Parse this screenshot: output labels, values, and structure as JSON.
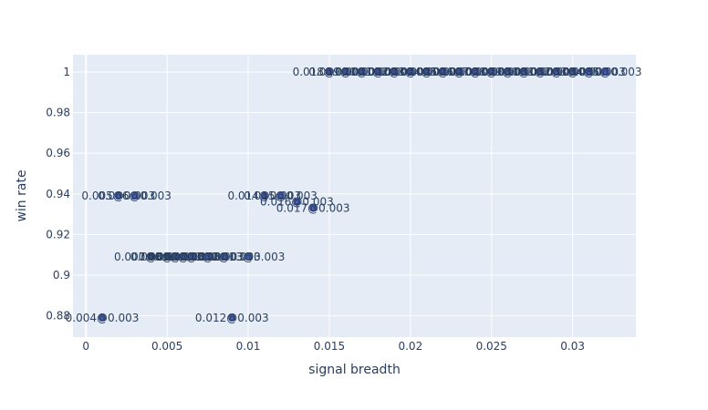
{
  "chart_data": {
    "type": "scatter",
    "title": "",
    "xlabel": "signal breadth",
    "ylabel": "win rate",
    "xlim": [
      -0.0008,
      0.0339
    ],
    "ylim": [
      0.8695,
      1.0085
    ],
    "grid": true,
    "x_ticks": [
      {
        "value": 0,
        "label": "0"
      },
      {
        "value": 0.005,
        "label": "0.005"
      },
      {
        "value": 0.01,
        "label": "0.01"
      },
      {
        "value": 0.015,
        "label": "0.015"
      },
      {
        "value": 0.02,
        "label": "0.02"
      },
      {
        "value": 0.025,
        "label": "0.025"
      },
      {
        "value": 0.03,
        "label": "0.03"
      }
    ],
    "y_ticks": [
      {
        "value": 0.88,
        "label": "0.88"
      },
      {
        "value": 0.9,
        "label": "0.9"
      },
      {
        "value": 0.92,
        "label": "0.92"
      },
      {
        "value": 0.94,
        "label": "0.94"
      },
      {
        "value": 0.96,
        "label": "0.96"
      },
      {
        "value": 0.98,
        "label": "0.98"
      },
      {
        "value": 1,
        "label": "1"
      }
    ],
    "marker_color": "#4c5ea8",
    "marker_edge": "#2a3f80",
    "points": [
      {
        "x": 0.001,
        "y": 0.879,
        "label": "0.004@0.003"
      },
      {
        "x": 0.009,
        "y": 0.879,
        "label": "0.012@0.003"
      },
      {
        "x": 0.004,
        "y": 0.909,
        "label": "0.007@0.003"
      },
      {
        "x": 0.005,
        "y": 0.909,
        "label": "0.008@0.003"
      },
      {
        "x": 0.0055,
        "y": 0.909,
        "label": "0.009@0.003"
      },
      {
        "x": 0.006,
        "y": 0.909,
        "label": "0.009@0.003"
      },
      {
        "x": 0.0065,
        "y": 0.909,
        "label": "0.010@0.003"
      },
      {
        "x": 0.0075,
        "y": 0.909,
        "label": "0.011@0.003"
      },
      {
        "x": 0.0085,
        "y": 0.909,
        "label": "0.012@0.003"
      },
      {
        "x": 0.01,
        "y": 0.909,
        "label": "0.013@0.003"
      },
      {
        "x": 0.002,
        "y": 0.939,
        "label": "0.005@0.003"
      },
      {
        "x": 0.003,
        "y": 0.939,
        "label": "0.006@0.003"
      },
      {
        "x": 0.011,
        "y": 0.939,
        "label": "0.014@0.003"
      },
      {
        "x": 0.012,
        "y": 0.939,
        "label": "0.015@0.003"
      },
      {
        "x": 0.013,
        "y": 0.936,
        "label": "0.016@0.003"
      },
      {
        "x": 0.014,
        "y": 0.933,
        "label": "0.017@0.003"
      },
      {
        "x": 0.015,
        "y": 1,
        "label": "0.018@0.003"
      },
      {
        "x": 0.016,
        "y": 1,
        "label": "0.019@0.003"
      },
      {
        "x": 0.017,
        "y": 1,
        "label": "0.020@0.003"
      },
      {
        "x": 0.018,
        "y": 1,
        "label": "0.021@0.003"
      },
      {
        "x": 0.019,
        "y": 1,
        "label": "0.022@0.003"
      },
      {
        "x": 0.02,
        "y": 1,
        "label": "0.023@0.003"
      },
      {
        "x": 0.021,
        "y": 1,
        "label": "0.024@0.003"
      },
      {
        "x": 0.022,
        "y": 1,
        "label": "0.025@0.003"
      },
      {
        "x": 0.023,
        "y": 1,
        "label": "0.026@0.003"
      },
      {
        "x": 0.024,
        "y": 1,
        "label": "0.027@0.003"
      },
      {
        "x": 0.025,
        "y": 1,
        "label": "0.028@0.003"
      },
      {
        "x": 0.026,
        "y": 1,
        "label": "0.029@0.003"
      },
      {
        "x": 0.027,
        "y": 1,
        "label": "0.030@0.003"
      },
      {
        "x": 0.028,
        "y": 1,
        "label": "0.031@0.003"
      },
      {
        "x": 0.029,
        "y": 1,
        "label": "0.032@0.003"
      },
      {
        "x": 0.03,
        "y": 1,
        "label": "0.033@0.003"
      },
      {
        "x": 0.031,
        "y": 1,
        "label": "0.034@0.003"
      },
      {
        "x": 0.032,
        "y": 1,
        "label": "0.035@0.003"
      }
    ]
  }
}
